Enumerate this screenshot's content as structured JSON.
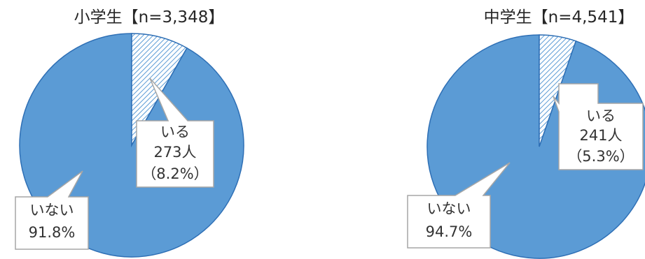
{
  "chart_data": [
    {
      "type": "pie",
      "title": "小学生【n=3,348】",
      "slices": [
        {
          "label": "いる",
          "count_text": "273人",
          "pct_text": "（8.2%）",
          "value": 8.2,
          "pattern": "hatch"
        },
        {
          "label": "いない",
          "pct_text": "91.8%",
          "value": 91.8,
          "color": "#5B9BD5"
        }
      ]
    },
    {
      "type": "pie",
      "title": "中学生【n=4,541】",
      "slices": [
        {
          "label": "いる",
          "count_text": "241人",
          "pct_text": "（5.3%）",
          "value": 5.3,
          "pattern": "hatch"
        },
        {
          "label": "いない",
          "pct_text": "94.7%",
          "value": 94.7,
          "color": "#5B9BD5"
        }
      ]
    }
  ],
  "colors": {
    "slice_fill": "#5B9BD5",
    "slice_stroke": "#2E6FB5",
    "hatch_line": "#5B9BD5",
    "callout_border": "#A6A6A6"
  }
}
